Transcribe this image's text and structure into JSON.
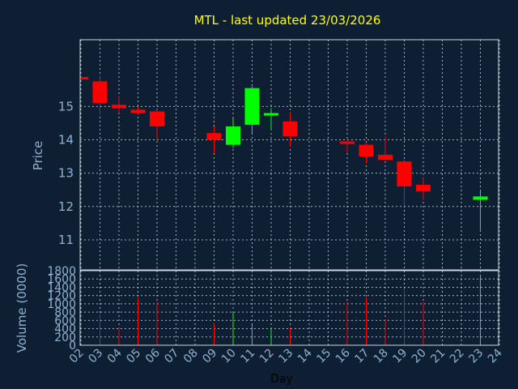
{
  "chart_data": {
    "type": "candlestick",
    "title": "MTL - last updated 23/03/2026",
    "xlabel": "Day",
    "price_panel": {
      "ylabel": "Price",
      "ylim": [
        10.1,
        17.0
      ],
      "yticks": [
        11,
        12,
        13,
        14,
        15
      ],
      "grid": true
    },
    "volume_panel": {
      "ylabel": "Volume (0000)",
      "ylim": [
        0,
        1800
      ],
      "yticks": [
        0,
        200,
        400,
        600,
        800,
        1000,
        1200,
        1400,
        1600,
        1800
      ],
      "grid": true
    },
    "x_ticks": [
      "02",
      "03",
      "04",
      "05",
      "06",
      "07",
      "08",
      "09",
      "10",
      "11",
      "12",
      "13",
      "14",
      "15",
      "16",
      "17",
      "18",
      "19",
      "20",
      "21",
      "22",
      "23",
      "24"
    ],
    "x_range": [
      2,
      24
    ],
    "candles": [
      {
        "day": 2,
        "open": 15.88,
        "high": 15.88,
        "low": 15.82,
        "close": 15.82,
        "volume": 0
      },
      {
        "day": 3,
        "open": 15.75,
        "high": 15.92,
        "low": 14.75,
        "close": 15.1,
        "volume": 750
      },
      {
        "day": 4,
        "open": 15.05,
        "high": 15.3,
        "low": 14.8,
        "close": 14.95,
        "volume": 420
      },
      {
        "day": 5,
        "open": 14.9,
        "high": 15.0,
        "low": 14.75,
        "close": 14.8,
        "volume": 1150
      },
      {
        "day": 6,
        "open": 14.85,
        "high": 14.9,
        "low": 14.0,
        "close": 14.4,
        "volume": 1050
      },
      {
        "day": 9,
        "open": 14.2,
        "high": 14.4,
        "low": 13.6,
        "close": 14.0,
        "volume": 520
      },
      {
        "day": 10,
        "open": 13.85,
        "high": 14.65,
        "low": 13.75,
        "close": 14.4,
        "volume": 820
      },
      {
        "day": 11,
        "open": 14.45,
        "high": 15.6,
        "low": 14.2,
        "close": 15.55,
        "volume": 490
      },
      {
        "day": 12,
        "open": 14.75,
        "high": 14.95,
        "low": 14.3,
        "close": 14.8,
        "volume": 420
      },
      {
        "day": 13,
        "open": 14.55,
        "high": 14.8,
        "low": 13.8,
        "close": 14.1,
        "volume": 440
      },
      {
        "day": 16,
        "open": 13.95,
        "high": 14.0,
        "low": 13.6,
        "close": 13.9,
        "volume": 1050
      },
      {
        "day": 17,
        "open": 13.85,
        "high": 13.9,
        "low": 13.3,
        "close": 13.5,
        "volume": 1150
      },
      {
        "day": 18,
        "open": 13.55,
        "high": 14.1,
        "low": 13.4,
        "close": 13.4,
        "volume": 620
      },
      {
        "day": 19,
        "open": 13.35,
        "high": 13.4,
        "low": 12.0,
        "close": 12.6,
        "volume": 1380
      },
      {
        "day": 20,
        "open": 12.65,
        "high": 12.85,
        "low": 12.2,
        "close": 12.45,
        "volume": 1050
      },
      {
        "day": 23,
        "open": 12.2,
        "high": 12.5,
        "low": 11.3,
        "close": 12.3,
        "volume": 1680
      }
    ],
    "colors": {
      "background": "#0f1f33",
      "title": "#ffff00",
      "up": "#00ff00",
      "down": "#ff0000",
      "axis_text": "#8fb2cf",
      "xlabel_text": "#000000",
      "frame": "#c9d3de"
    }
  }
}
